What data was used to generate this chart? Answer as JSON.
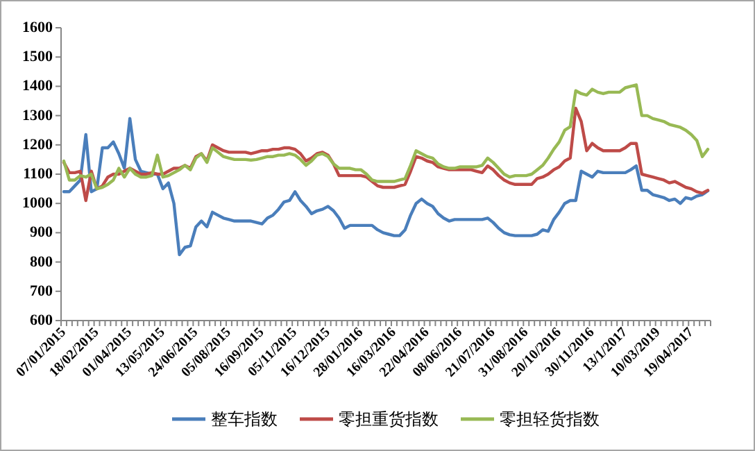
{
  "chart_data": {
    "type": "line",
    "categories": [
      "07/01/2015",
      null,
      null,
      null,
      null,
      null,
      "18/02/2015",
      null,
      null,
      null,
      null,
      null,
      "01/04/2015",
      null,
      null,
      null,
      null,
      null,
      "13/05/2015",
      null,
      null,
      null,
      null,
      null,
      "24/06/2015",
      null,
      null,
      null,
      null,
      null,
      "05/08/2015",
      null,
      null,
      null,
      null,
      null,
      "16/09/2015",
      null,
      null,
      null,
      null,
      null,
      "05/11/2015",
      null,
      null,
      null,
      null,
      null,
      "16/12/2015",
      null,
      null,
      null,
      null,
      null,
      "28/01/2016",
      null,
      null,
      null,
      null,
      null,
      "16/03/2016",
      null,
      null,
      null,
      null,
      null,
      "22/04/2016",
      null,
      null,
      null,
      null,
      null,
      "08/06/2016",
      null,
      null,
      null,
      null,
      null,
      "21/07/2016",
      null,
      null,
      null,
      null,
      null,
      "31/08/2016",
      null,
      null,
      null,
      null,
      null,
      "20/10/2016",
      null,
      null,
      null,
      null,
      null,
      "30/11/2016",
      null,
      null,
      null,
      null,
      null,
      "13/1/2017",
      null,
      null,
      null,
      null,
      null,
      "10/03/2019",
      null,
      null,
      null,
      null,
      null,
      "19/04/2017",
      null,
      null,
      null
    ],
    "series": [
      {
        "name": "整车指数",
        "color": "#4a7ebb",
        "values": [
          1040,
          1040,
          1060,
          1080,
          1235,
          1040,
          1050,
          1190,
          1190,
          1210,
          1170,
          1120,
          1290,
          1150,
          1110,
          1105,
          1100,
          1100,
          1050,
          1070,
          1000,
          825,
          850,
          855,
          920,
          940,
          920,
          970,
          960,
          950,
          945,
          940,
          940,
          940,
          940,
          935,
          930,
          950,
          960,
          980,
          1005,
          1010,
          1040,
          1010,
          990,
          965,
          975,
          980,
          990,
          975,
          950,
          915,
          925,
          925,
          925,
          925,
          925,
          910,
          900,
          895,
          890,
          890,
          910,
          960,
          1000,
          1015,
          1000,
          990,
          965,
          950,
          940,
          945,
          945,
          945,
          945,
          945,
          945,
          950,
          935,
          915,
          900,
          893,
          890,
          890,
          890,
          890,
          895,
          910,
          905,
          945,
          970,
          1000,
          1010,
          1010,
          1110,
          1100,
          1090,
          1110,
          1105,
          1105,
          1105,
          1105,
          1105,
          1115,
          1128,
          1045,
          1045,
          1030,
          1025,
          1020,
          1010,
          1015,
          1000,
          1020,
          1015,
          1025,
          1030,
          1043
        ]
      },
      {
        "name": "零担重货指数",
        "color": "#be4b48",
        "values": [
          1140,
          1105,
          1105,
          1110,
          1010,
          1110,
          1050,
          1060,
          1090,
          1100,
          1100,
          1110,
          1120,
          1110,
          1100,
          1100,
          1105,
          1100,
          1100,
          1110,
          1120,
          1120,
          1130,
          1120,
          1160,
          1170,
          1145,
          1200,
          1190,
          1180,
          1175,
          1175,
          1175,
          1175,
          1170,
          1175,
          1180,
          1180,
          1185,
          1185,
          1190,
          1190,
          1185,
          1170,
          1145,
          1155,
          1170,
          1175,
          1165,
          1135,
          1095,
          1095,
          1095,
          1095,
          1095,
          1090,
          1075,
          1060,
          1055,
          1055,
          1055,
          1060,
          1065,
          1110,
          1160,
          1155,
          1145,
          1140,
          1125,
          1120,
          1115,
          1115,
          1115,
          1115,
          1115,
          1110,
          1105,
          1128,
          1115,
          1095,
          1080,
          1070,
          1065,
          1065,
          1065,
          1065,
          1085,
          1090,
          1100,
          1115,
          1125,
          1145,
          1155,
          1325,
          1280,
          1180,
          1205,
          1190,
          1180,
          1180,
          1180,
          1180,
          1190,
          1205,
          1205,
          1100,
          1095,
          1090,
          1085,
          1080,
          1070,
          1075,
          1065,
          1055,
          1050,
          1040,
          1035,
          1045
        ]
      },
      {
        "name": "零担轻货指数",
        "color": "#98b954",
        "values": [
          1145,
          1080,
          1080,
          1095,
          1090,
          1100,
          1050,
          1055,
          1065,
          1080,
          1120,
          1090,
          1120,
          1100,
          1090,
          1090,
          1095,
          1165,
          1090,
          1095,
          1105,
          1115,
          1130,
          1115,
          1155,
          1170,
          1140,
          1190,
          1175,
          1160,
          1155,
          1150,
          1150,
          1150,
          1148,
          1150,
          1155,
          1160,
          1160,
          1165,
          1165,
          1170,
          1165,
          1150,
          1130,
          1145,
          1165,
          1170,
          1160,
          1135,
          1120,
          1120,
          1120,
          1115,
          1115,
          1100,
          1080,
          1075,
          1075,
          1075,
          1075,
          1080,
          1085,
          1130,
          1180,
          1170,
          1160,
          1155,
          1135,
          1125,
          1120,
          1120,
          1125,
          1125,
          1125,
          1125,
          1130,
          1155,
          1140,
          1120,
          1100,
          1090,
          1095,
          1095,
          1095,
          1100,
          1115,
          1130,
          1155,
          1185,
          1210,
          1250,
          1262,
          1385,
          1375,
          1370,
          1390,
          1380,
          1375,
          1380,
          1380,
          1380,
          1395,
          1400,
          1405,
          1300,
          1300,
          1290,
          1285,
          1280,
          1270,
          1265,
          1260,
          1250,
          1235,
          1215,
          1160,
          1185
        ]
      }
    ],
    "ylim": [
      600,
      1600
    ],
    "yticks": [
      600,
      700,
      800,
      900,
      1000,
      1100,
      1200,
      1300,
      1400,
      1500,
      1600
    ],
    "legend": "bottom"
  }
}
